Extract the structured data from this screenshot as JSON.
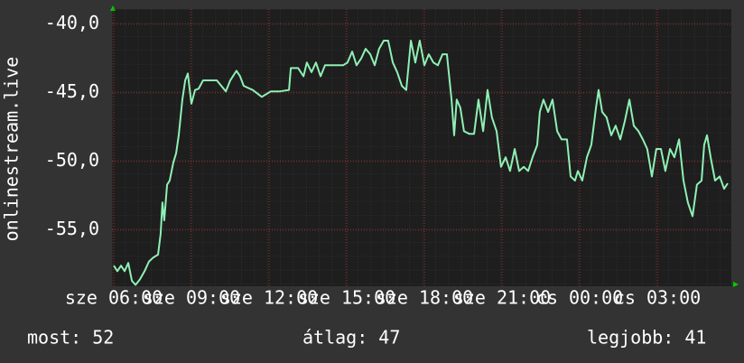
{
  "chart_data": {
    "type": "line",
    "ylabel": "onlinestream.live",
    "x": [
      6.0,
      6.14,
      6.28,
      6.42,
      6.56,
      6.7,
      6.84,
      7.01,
      7.19,
      7.36,
      7.53,
      7.71,
      7.81,
      7.88,
      7.95,
      8.06,
      8.16,
      8.3,
      8.41,
      8.51,
      8.65,
      8.76,
      8.86,
      9.0,
      9.14,
      9.28,
      9.45,
      9.63,
      9.98,
      10.33,
      10.5,
      10.74,
      10.88,
      11.02,
      11.37,
      11.72,
      12.07,
      12.42,
      12.77,
      12.84,
      13.12,
      13.33,
      13.46,
      13.64,
      13.81,
      13.99,
      14.16,
      14.51,
      14.86,
      15.03,
      15.21,
      15.38,
      15.56,
      15.73,
      15.91,
      16.08,
      16.25,
      16.43,
      16.6,
      16.78,
      16.95,
      17.13,
      17.3,
      17.48,
      17.65,
      17.82,
      18.0,
      18.17,
      18.35,
      18.52,
      18.7,
      18.87,
      19.05,
      19.15,
      19.25,
      19.39,
      19.53,
      19.74,
      19.92,
      20.09,
      20.27,
      20.44,
      20.61,
      20.79,
      20.96,
      21.14,
      21.31,
      21.49,
      21.66,
      21.84,
      22.01,
      22.18,
      22.36,
      22.46,
      22.6,
      22.78,
      22.95,
      23.13,
      23.3,
      23.51,
      23.65,
      23.82,
      23.93,
      24.1,
      24.28,
      24.45,
      24.63,
      24.73,
      24.87,
      25.04,
      25.22,
      25.39,
      25.57,
      25.74,
      25.92,
      26.09,
      26.27,
      26.44,
      26.61,
      26.79,
      26.96,
      27.14,
      27.31,
      27.49,
      27.66,
      27.84,
      28.01,
      28.18,
      28.36,
      28.53,
      28.71,
      28.81,
      28.92,
      29.06,
      29.23,
      29.41,
      29.58,
      29.72
    ],
    "series": [
      {
        "name": "onlinestream.live",
        "color": "#8ff0b4",
        "values": [
          -57.6,
          -58.0,
          -57.6,
          -58.0,
          -57.4,
          -58.7,
          -59.0,
          -58.6,
          -58.0,
          -57.3,
          -57.0,
          -56.8,
          -55.3,
          -53.0,
          -54.3,
          -51.7,
          -51.4,
          -50.1,
          -49.4,
          -48.1,
          -45.5,
          -44.1,
          -43.6,
          -45.8,
          -44.8,
          -44.7,
          -44.1,
          -44.1,
          -44.1,
          -44.9,
          -44.1,
          -43.4,
          -43.8,
          -44.5,
          -44.8,
          -45.3,
          -44.9,
          -44.9,
          -44.8,
          -43.2,
          -43.2,
          -43.8,
          -42.8,
          -43.5,
          -42.8,
          -43.8,
          -43.0,
          -43.0,
          -43.0,
          -42.8,
          -42.0,
          -43.0,
          -42.5,
          -41.8,
          -42.2,
          -43.0,
          -41.8,
          -41.2,
          -41.2,
          -42.8,
          -43.5,
          -44.5,
          -44.8,
          -41.2,
          -42.8,
          -41.2,
          -43.0,
          -42.2,
          -42.8,
          -43.0,
          -42.2,
          -42.2,
          -45.5,
          -48.1,
          -45.5,
          -46.1,
          -47.8,
          -48.0,
          -48.0,
          -45.5,
          -47.8,
          -44.8,
          -46.8,
          -47.8,
          -50.4,
          -49.7,
          -50.7,
          -49.1,
          -50.7,
          -50.4,
          -50.7,
          -49.7,
          -48.8,
          -46.4,
          -45.5,
          -46.4,
          -45.5,
          -47.8,
          -48.4,
          -48.4,
          -51.1,
          -51.4,
          -50.7,
          -51.4,
          -49.7,
          -48.8,
          -46.1,
          -44.8,
          -46.4,
          -46.8,
          -48.1,
          -47.4,
          -48.4,
          -47.1,
          -45.5,
          -47.4,
          -47.8,
          -48.4,
          -49.1,
          -51.1,
          -49.1,
          -49.1,
          -50.7,
          -49.1,
          -49.7,
          -48.4,
          -51.4,
          -53.0,
          -54.0,
          -51.7,
          -51.4,
          -48.8,
          -48.1,
          -49.7,
          -51.4,
          -51.1,
          -52.0,
          -51.6
        ]
      }
    ],
    "xlim": [
      5.93,
      29.86
    ],
    "ylim": [
      -59.1,
      -38.9
    ],
    "xticks": [
      {
        "value": 6,
        "label": "sze 06:00"
      },
      {
        "value": 9,
        "label": "sze 09:00"
      },
      {
        "value": 12,
        "label": "sze 12:00"
      },
      {
        "value": 15,
        "label": "sze 15:00"
      },
      {
        "value": 18,
        "label": "sze 18:00"
      },
      {
        "value": 21,
        "label": "sze 21:00"
      },
      {
        "value": 24,
        "label": "cs 00:00"
      },
      {
        "value": 27,
        "label": "cs 03:00"
      }
    ],
    "yticks": [
      {
        "value": -40,
        "label": "-40,0"
      },
      {
        "value": -45,
        "label": "-45,0"
      },
      {
        "value": -50,
        "label": "-50,0"
      },
      {
        "value": -55,
        "label": "-55,0"
      }
    ],
    "grid": true,
    "stats": [
      "most: 52",
      "átlag: 47",
      "legjobb: 41"
    ]
  }
}
